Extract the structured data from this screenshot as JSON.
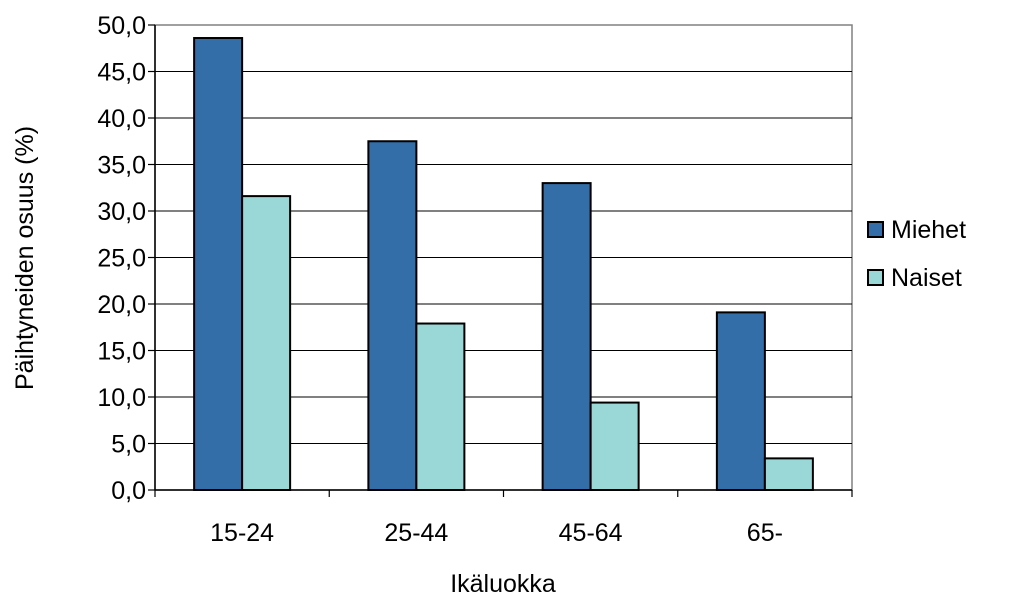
{
  "chart_data": {
    "type": "bar",
    "title": "",
    "xlabel": "Ikäluokka",
    "ylabel": "Päihtyneiden osuus (%)",
    "categories": [
      "15-24",
      "25-44",
      "45-64",
      "65-"
    ],
    "series": [
      {
        "name": "Miehet",
        "values": [
          48.6,
          37.5,
          33.0,
          19.1
        ],
        "color": "#336ea8"
      },
      {
        "name": "Naiset",
        "values": [
          31.6,
          17.9,
          9.4,
          3.4
        ],
        "color": "#9ad8d8"
      }
    ],
    "ylim": [
      0,
      50
    ],
    "ytick_step": 5,
    "ytick_labels": [
      "0,0",
      "5,0",
      "10,0",
      "15,0",
      "20,0",
      "25,0",
      "30,0",
      "35,0",
      "40,0",
      "45,0",
      "50,0"
    ],
    "grid": true,
    "legend_position": "right"
  }
}
